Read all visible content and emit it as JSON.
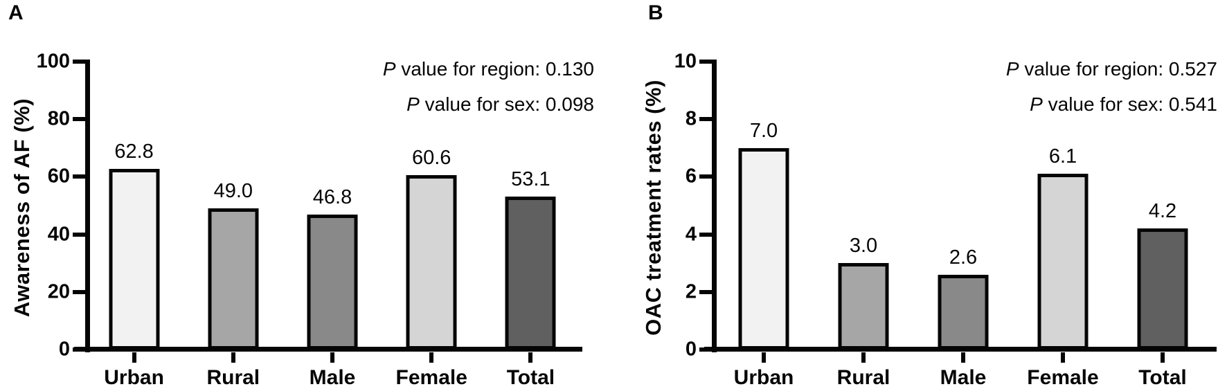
{
  "chart_data": [
    {
      "type": "bar",
      "panel_letter": "A",
      "ylabel": "Awareness of AF (%)",
      "ylim": [
        0,
        100
      ],
      "yticks": [
        0,
        20,
        40,
        60,
        80,
        100
      ],
      "categories": [
        "Urban",
        "Rural",
        "Male",
        "Female",
        "Total"
      ],
      "values": [
        62.8,
        49.0,
        46.8,
        60.6,
        53.1
      ],
      "value_labels": [
        "62.8",
        "49.0",
        "46.8",
        "60.6",
        "53.1"
      ],
      "bar_colors": [
        "#f2f2f2",
        "#a6a6a6",
        "#898989",
        "#d5d5d5",
        "#606060"
      ],
      "bar_border_color": "#050505",
      "annotations": [
        "P value for region: 0.130",
        "P value for sex: 0.098"
      ],
      "grid": false,
      "legend": "none"
    },
    {
      "type": "bar",
      "panel_letter": "B",
      "ylabel": "OAC treatment rates (%)",
      "ylim": [
        0,
        10
      ],
      "yticks": [
        0,
        2,
        4,
        6,
        8,
        10
      ],
      "categories": [
        "Urban",
        "Rural",
        "Male",
        "Female",
        "Total"
      ],
      "values": [
        7.0,
        3.0,
        2.6,
        6.1,
        4.2
      ],
      "value_labels": [
        "7.0",
        "3.0",
        "2.6",
        "6.1",
        "4.2"
      ],
      "bar_colors": [
        "#f2f2f2",
        "#a6a6a6",
        "#898989",
        "#d5d5d5",
        "#606060"
      ],
      "bar_border_color": "#050505",
      "annotations": [
        "P value for region: 0.527",
        "P value for sex: 0.541"
      ],
      "grid": false,
      "legend": "none"
    }
  ]
}
